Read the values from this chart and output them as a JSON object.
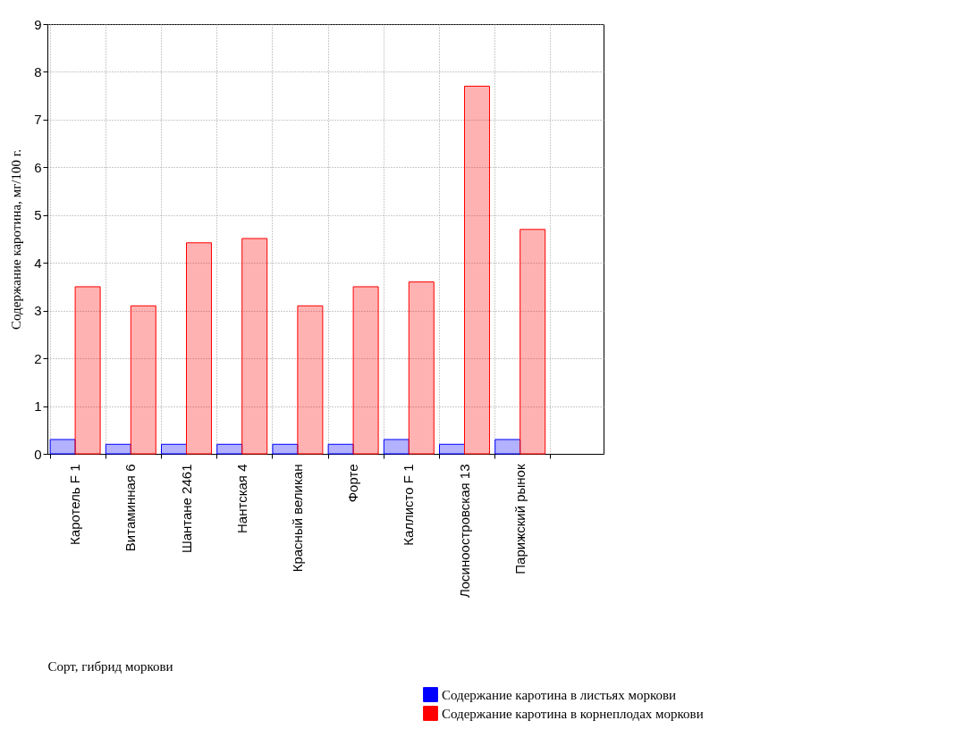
{
  "chart_data": {
    "type": "bar",
    "xlabel": "Сорт, гибрид моркови",
    "ylabel": "Содержание каротина, мг/100 г.",
    "categories": [
      "Каротель F 1",
      "Витаминная 6",
      "Шантане 2461",
      "Нантская 4",
      "Красный великан",
      "Форте",
      "Каллисто F 1",
      "Лосиноостровская 13",
      "Парижский рынок",
      null
    ],
    "series": [
      {
        "name": "Содержание каротина в листьях моркови",
        "color": "#0000ff",
        "values": [
          0.3,
          0.2,
          0.2,
          0.2,
          0.2,
          0.2,
          0.3,
          0.2,
          0.3,
          null
        ]
      },
      {
        "name": "Содержание каротина в корнеплодах моркови",
        "color": "#ff0000",
        "values": [
          3.5,
          3.1,
          4.42,
          4.51,
          3.1,
          3.5,
          3.6,
          7.7,
          4.7,
          null
        ]
      }
    ],
    "ylim": [
      0,
      9
    ],
    "yticks": [
      0,
      1,
      2,
      3,
      4,
      5,
      6,
      7,
      8,
      9
    ],
    "grid": true,
    "legend": "bottom right"
  }
}
